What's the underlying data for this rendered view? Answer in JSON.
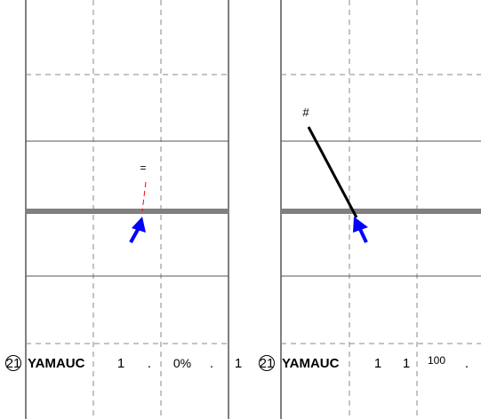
{
  "colors": {
    "background": "#ffffff",
    "frame": "#000000",
    "grid_dashed": "#888888",
    "grid_solid": "#555555",
    "thick_band": "#808080",
    "arrow": "#0000ff",
    "left_pointer": "#ff0000",
    "right_pointer": "#000000"
  },
  "icons": {
    "circled_number": "circled-21-icon",
    "arrow": "blue-up-arrow-icon"
  },
  "panels": [
    {
      "pointer_label": "=",
      "row": {
        "circle": "21",
        "name": "YAMAUC",
        "c1": "1",
        "c2": ".",
        "c3": "0%",
        "c4": ".",
        "c5": "1"
      }
    },
    {
      "pointer_label": "#",
      "row": {
        "circle": "21",
        "name": "YAMAUC",
        "c1": "1",
        "c2": "1",
        "c3": "100",
        "c4": "."
      }
    }
  ]
}
